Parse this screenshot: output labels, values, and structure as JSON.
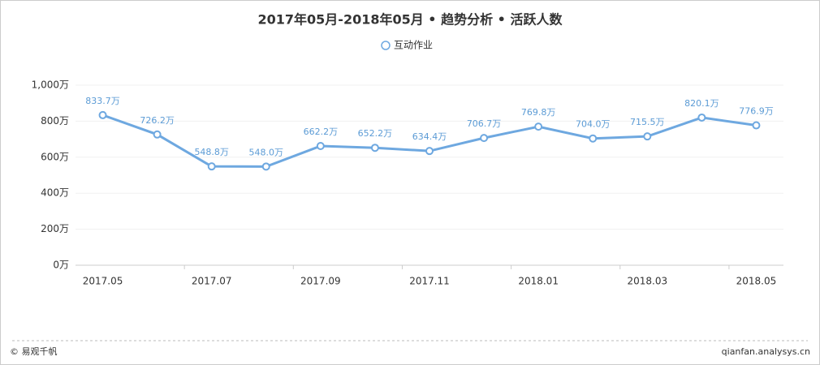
{
  "chart_data": {
    "type": "line",
    "title": "2017年05月-2018年05月 • 趋势分析 • 活跃人数",
    "categories": [
      "2017.05",
      null,
      "2017.07",
      null,
      "2017.09",
      null,
      "2017.11",
      null,
      "2018.01",
      null,
      "2018.03",
      null,
      "2018.05"
    ],
    "series": [
      {
        "name": "互动作业",
        "color": "#6ea8e0",
        "values": [
          833.7,
          726.2,
          548.8,
          548.0,
          662.2,
          652.2,
          634.4,
          706.7,
          769.8,
          704.0,
          715.5,
          820.1,
          776.9
        ],
        "value_labels": [
          "833.7万",
          "726.2万",
          "548.8万",
          "548.0万",
          "662.2万",
          "652.2万",
          "634.4万",
          "706.7万",
          "769.8万",
          "704.0万",
          "715.5万",
          "820.1万",
          "776.9万"
        ]
      }
    ],
    "ylim": [
      0,
      1000
    ],
    "yticks": [
      {
        "value": 0,
        "label": "0万"
      },
      {
        "value": 200,
        "label": "200万"
      },
      {
        "value": 400,
        "label": "400万"
      },
      {
        "value": 600,
        "label": "600万"
      },
      {
        "value": 800,
        "label": "800万"
      },
      {
        "value": 1000,
        "label": "1,000万"
      }
    ],
    "grid": true
  },
  "footer": {
    "left": "© 易观千帆",
    "right": "qianfan.analysys.cn"
  }
}
